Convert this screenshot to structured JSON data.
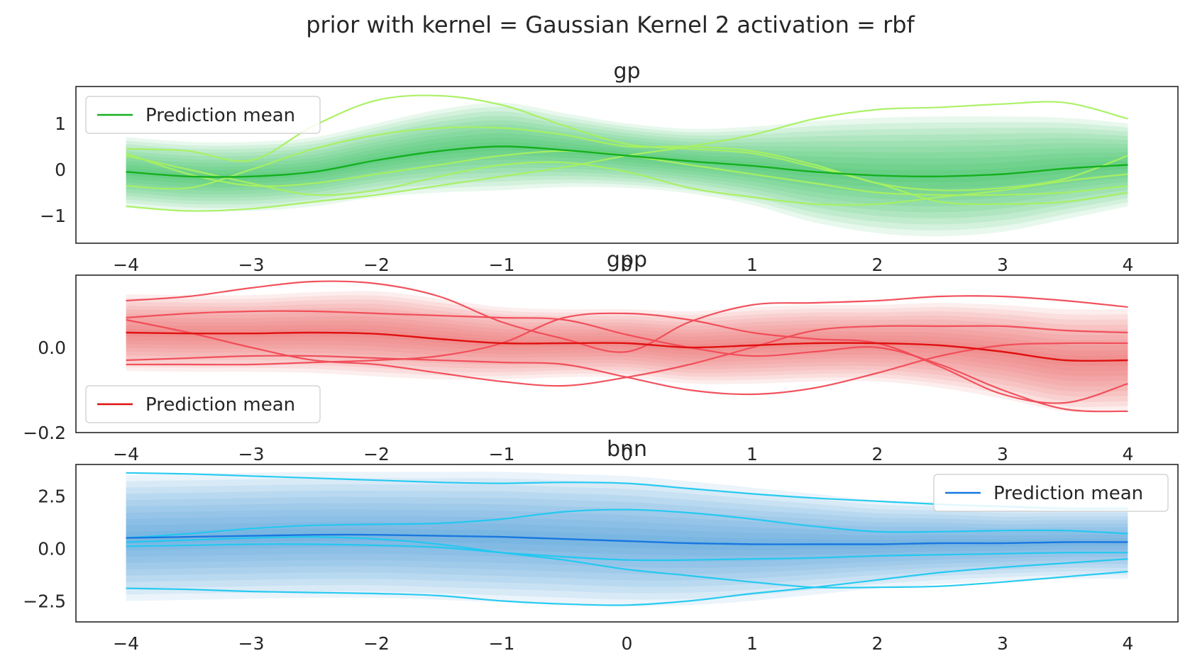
{
  "figure": {
    "title": "prior with kernel = Gaussian Kernel 2 activation = rbf"
  },
  "chart_data": [
    {
      "type": "line",
      "title": "gp",
      "xlim": [
        -4.4,
        4.4
      ],
      "ylim": [
        -1.6,
        1.8
      ],
      "xticks": [
        {
          "v": -4,
          "label": "−4"
        },
        {
          "v": -3,
          "label": "−3"
        },
        {
          "v": -2,
          "label": "−2"
        },
        {
          "v": -1,
          "label": "−1"
        },
        {
          "v": 0,
          "label": "0"
        },
        {
          "v": 1,
          "label": "1"
        },
        {
          "v": 2,
          "label": "2"
        },
        {
          "v": 3,
          "label": "3"
        },
        {
          "v": 4,
          "label": "4"
        }
      ],
      "yticks": [
        {
          "v": 1,
          "label": "1"
        },
        {
          "v": 0,
          "label": "0"
        },
        {
          "v": -1,
          "label": "−1"
        }
      ],
      "grid": false,
      "legend": {
        "entry": "Prediction mean",
        "placement": "upper-left"
      },
      "colors": {
        "mean": "#14b01e",
        "band": "#1dbf50",
        "samples": "#a8f060"
      },
      "x": [
        -4,
        -3.5,
        -3,
        -2.5,
        -2,
        -1.5,
        -1,
        -0.5,
        0,
        0.5,
        1,
        1.5,
        2,
        2.5,
        3,
        3.5,
        4
      ],
      "mean": [
        -0.05,
        -0.15,
        -0.15,
        -0.05,
        0.2,
        0.4,
        0.5,
        0.42,
        0.3,
        0.18,
        0.08,
        -0.05,
        -0.13,
        -0.15,
        -0.1,
        0.02,
        0.1
      ],
      "band_halfwidth": [
        0.75,
        0.75,
        0.75,
        0.75,
        0.8,
        0.9,
        0.95,
        0.8,
        0.7,
        0.7,
        0.85,
        1.1,
        1.25,
        1.3,
        1.25,
        1.1,
        0.9
      ],
      "band_levels": 10,
      "samples": [
        [
          -0.8,
          -0.9,
          -0.85,
          -0.7,
          -0.55,
          -0.35,
          -0.15,
          0.05,
          0.3,
          0.5,
          0.75,
          1.1,
          1.3,
          1.35,
          1.42,
          1.45,
          1.1
        ],
        [
          0.45,
          0.4,
          0.2,
          0.95,
          1.5,
          1.6,
          1.4,
          0.95,
          0.55,
          0.45,
          0.35,
          0.05,
          -0.3,
          -0.7,
          -0.75,
          -0.7,
          -0.5
        ],
        [
          -0.35,
          -0.4,
          0.0,
          0.45,
          0.75,
          0.9,
          0.9,
          0.75,
          0.5,
          0.5,
          0.4,
          0.1,
          -0.3,
          -0.45,
          -0.4,
          -0.2,
          0.3
        ],
        [
          0.3,
          0.0,
          -0.3,
          -0.55,
          -0.45,
          -0.15,
          0.1,
          0.15,
          -0.05,
          -0.4,
          -0.6,
          -0.75,
          -0.75,
          -0.6,
          -0.45,
          -0.25,
          -0.1
        ],
        [
          0.35,
          -0.1,
          -0.35,
          -0.3,
          -0.1,
          0.1,
          0.3,
          0.4,
          0.3,
          0.1,
          -0.1,
          -0.3,
          -0.5,
          -0.55,
          -0.55,
          -0.5,
          -0.35
        ]
      ]
    },
    {
      "type": "line",
      "title": "gpp",
      "xlim": [
        -4.4,
        4.4
      ],
      "ylim": [
        -0.2,
        0.17
      ],
      "xticks": [
        {
          "v": -4,
          "label": "−4"
        },
        {
          "v": -3,
          "label": "−3"
        },
        {
          "v": -2,
          "label": "−2"
        },
        {
          "v": -1,
          "label": "−1"
        },
        {
          "v": 0,
          "label": "0"
        },
        {
          "v": 1,
          "label": "1"
        },
        {
          "v": 2,
          "label": "2"
        },
        {
          "v": 3,
          "label": "3"
        },
        {
          "v": 4,
          "label": "4"
        }
      ],
      "yticks": [
        {
          "v": 0.0,
          "label": "0.0"
        },
        {
          "v": -0.2,
          "label": "−0.2"
        }
      ],
      "grid": false,
      "legend": {
        "entry": "Prediction mean",
        "placement": "lower-left"
      },
      "colors": {
        "mean": "#e01010",
        "band": "#f05555",
        "samples": "#f04a55"
      },
      "x": [
        -4,
        -3.5,
        -3,
        -2.5,
        -2,
        -1.5,
        -1,
        -0.5,
        0,
        0.5,
        1,
        1.5,
        2,
        2.5,
        3,
        3.5,
        4
      ],
      "mean": [
        0.035,
        0.033,
        0.033,
        0.035,
        0.032,
        0.02,
        0.01,
        0.01,
        0.01,
        0.0,
        0.005,
        0.01,
        0.01,
        0.005,
        -0.01,
        -0.03,
        -0.03
      ],
      "band_halfwidth": [
        0.09,
        0.09,
        0.09,
        0.095,
        0.1,
        0.095,
        0.085,
        0.08,
        0.08,
        0.085,
        0.09,
        0.09,
        0.09,
        0.1,
        0.11,
        0.12,
        0.12
      ],
      "band_levels": 10,
      "samples": [
        [
          0.11,
          0.12,
          0.14,
          0.155,
          0.15,
          0.12,
          0.06,
          0.02,
          -0.01,
          0.06,
          0.1,
          0.105,
          0.11,
          0.12,
          0.12,
          0.11,
          0.095
        ],
        [
          0.07,
          0.08,
          0.085,
          0.085,
          0.08,
          0.075,
          0.07,
          0.065,
          0.03,
          0.0,
          -0.02,
          -0.01,
          0.0,
          -0.04,
          -0.1,
          -0.145,
          -0.15
        ],
        [
          0.065,
          0.035,
          0.0,
          -0.03,
          -0.04,
          -0.06,
          -0.08,
          -0.09,
          -0.07,
          -0.04,
          0.0,
          0.04,
          0.05,
          0.05,
          0.05,
          0.04,
          0.035
        ],
        [
          -0.03,
          -0.025,
          -0.02,
          -0.02,
          -0.025,
          -0.03,
          -0.035,
          -0.04,
          -0.07,
          -0.1,
          -0.11,
          -0.095,
          -0.06,
          -0.02,
          0.005,
          0.01,
          0.01
        ],
        [
          -0.04,
          -0.04,
          -0.04,
          -0.035,
          -0.03,
          -0.02,
          0.01,
          0.07,
          0.08,
          0.065,
          0.035,
          0.02,
          0.01,
          -0.045,
          -0.11,
          -0.13,
          -0.085
        ]
      ]
    },
    {
      "type": "line",
      "title": "bnn",
      "xlim": [
        -4.4,
        4.4
      ],
      "ylim": [
        -3.5,
        4.0
      ],
      "xticks": [
        {
          "v": -4,
          "label": "−4"
        },
        {
          "v": -3,
          "label": "−3"
        },
        {
          "v": -2,
          "label": "−2"
        },
        {
          "v": -1,
          "label": "−1"
        },
        {
          "v": 0,
          "label": "0"
        },
        {
          "v": 1,
          "label": "1"
        },
        {
          "v": 2,
          "label": "2"
        },
        {
          "v": 3,
          "label": "3"
        },
        {
          "v": 4,
          "label": "4"
        }
      ],
      "yticks": [
        {
          "v": 2.5,
          "label": "2.5"
        },
        {
          "v": 0.0,
          "label": "0.0"
        },
        {
          "v": -2.5,
          "label": "−2.5"
        }
      ],
      "grid": false,
      "legend": {
        "entry": "Prediction mean",
        "placement": "upper-right"
      },
      "colors": {
        "mean": "#1878e0",
        "band": "#3a90dc",
        "samples": "#1ec8f0"
      },
      "x": [
        -4,
        -3.5,
        -3,
        -2.5,
        -2,
        -1.5,
        -1,
        -0.5,
        0,
        0.5,
        1,
        1.5,
        2,
        2.5,
        3,
        3.5,
        4
      ],
      "mean": [
        0.5,
        0.55,
        0.6,
        0.65,
        0.65,
        0.6,
        0.55,
        0.45,
        0.35,
        0.25,
        0.2,
        0.2,
        0.2,
        0.25,
        0.25,
        0.3,
        0.3
      ],
      "band_halfwidth": [
        3.0,
        3.0,
        3.0,
        3.0,
        3.0,
        3.05,
        3.1,
        3.1,
        3.1,
        2.95,
        2.7,
        2.4,
        2.1,
        1.95,
        1.8,
        1.75,
        1.75
      ],
      "band_levels": 10,
      "samples": [
        [
          3.6,
          3.55,
          3.45,
          3.35,
          3.25,
          3.15,
          3.1,
          3.15,
          3.1,
          2.85,
          2.6,
          2.4,
          2.25,
          2.1,
          2.0,
          1.9,
          1.9
        ],
        [
          0.5,
          0.7,
          0.95,
          1.1,
          1.15,
          1.2,
          1.4,
          1.75,
          1.85,
          1.7,
          1.4,
          1.05,
          0.8,
          0.8,
          0.85,
          0.85,
          0.7
        ],
        [
          0.3,
          0.4,
          0.5,
          0.55,
          0.45,
          0.2,
          -0.2,
          -0.55,
          -1.0,
          -1.3,
          -1.6,
          -1.85,
          -1.85,
          -1.8,
          -1.6,
          -1.35,
          -1.1
        ],
        [
          0.1,
          0.15,
          0.2,
          0.2,
          0.15,
          0.05,
          -0.2,
          -0.4,
          -0.55,
          -0.55,
          -0.5,
          -0.45,
          -0.35,
          -0.3,
          -0.25,
          -0.2,
          -0.2
        ],
        [
          -1.9,
          -1.95,
          -2.05,
          -2.1,
          -2.15,
          -2.25,
          -2.5,
          -2.65,
          -2.7,
          -2.5,
          -2.15,
          -1.85,
          -1.5,
          -1.15,
          -0.9,
          -0.7,
          -0.5
        ]
      ]
    }
  ]
}
